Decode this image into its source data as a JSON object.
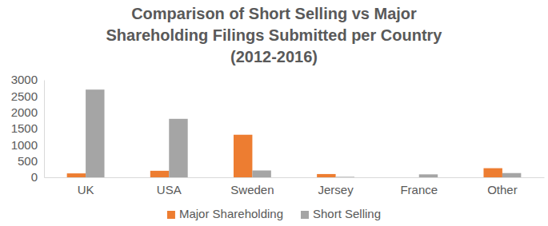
{
  "chart_data": {
    "type": "bar",
    "title": "Comparison of Short Selling vs Major Shareholding Filings Submitted per Country (2012-2016)",
    "categories": [
      "UK",
      "USA",
      "Sweden",
      "Jersey",
      "France",
      "Other"
    ],
    "series": [
      {
        "name": "Major Shareholding",
        "color": "#ed7d31",
        "values": [
          120,
          200,
          1310,
          100,
          0,
          280
        ]
      },
      {
        "name": "Short Selling",
        "color": "#a5a5a5",
        "values": [
          2700,
          1800,
          210,
          15,
          90,
          130
        ]
      }
    ],
    "ylim": [
      0,
      3000
    ],
    "yticks": [
      0,
      500,
      1000,
      1500,
      2000,
      2500,
      3000
    ],
    "grid": false,
    "legend": "bottom"
  }
}
